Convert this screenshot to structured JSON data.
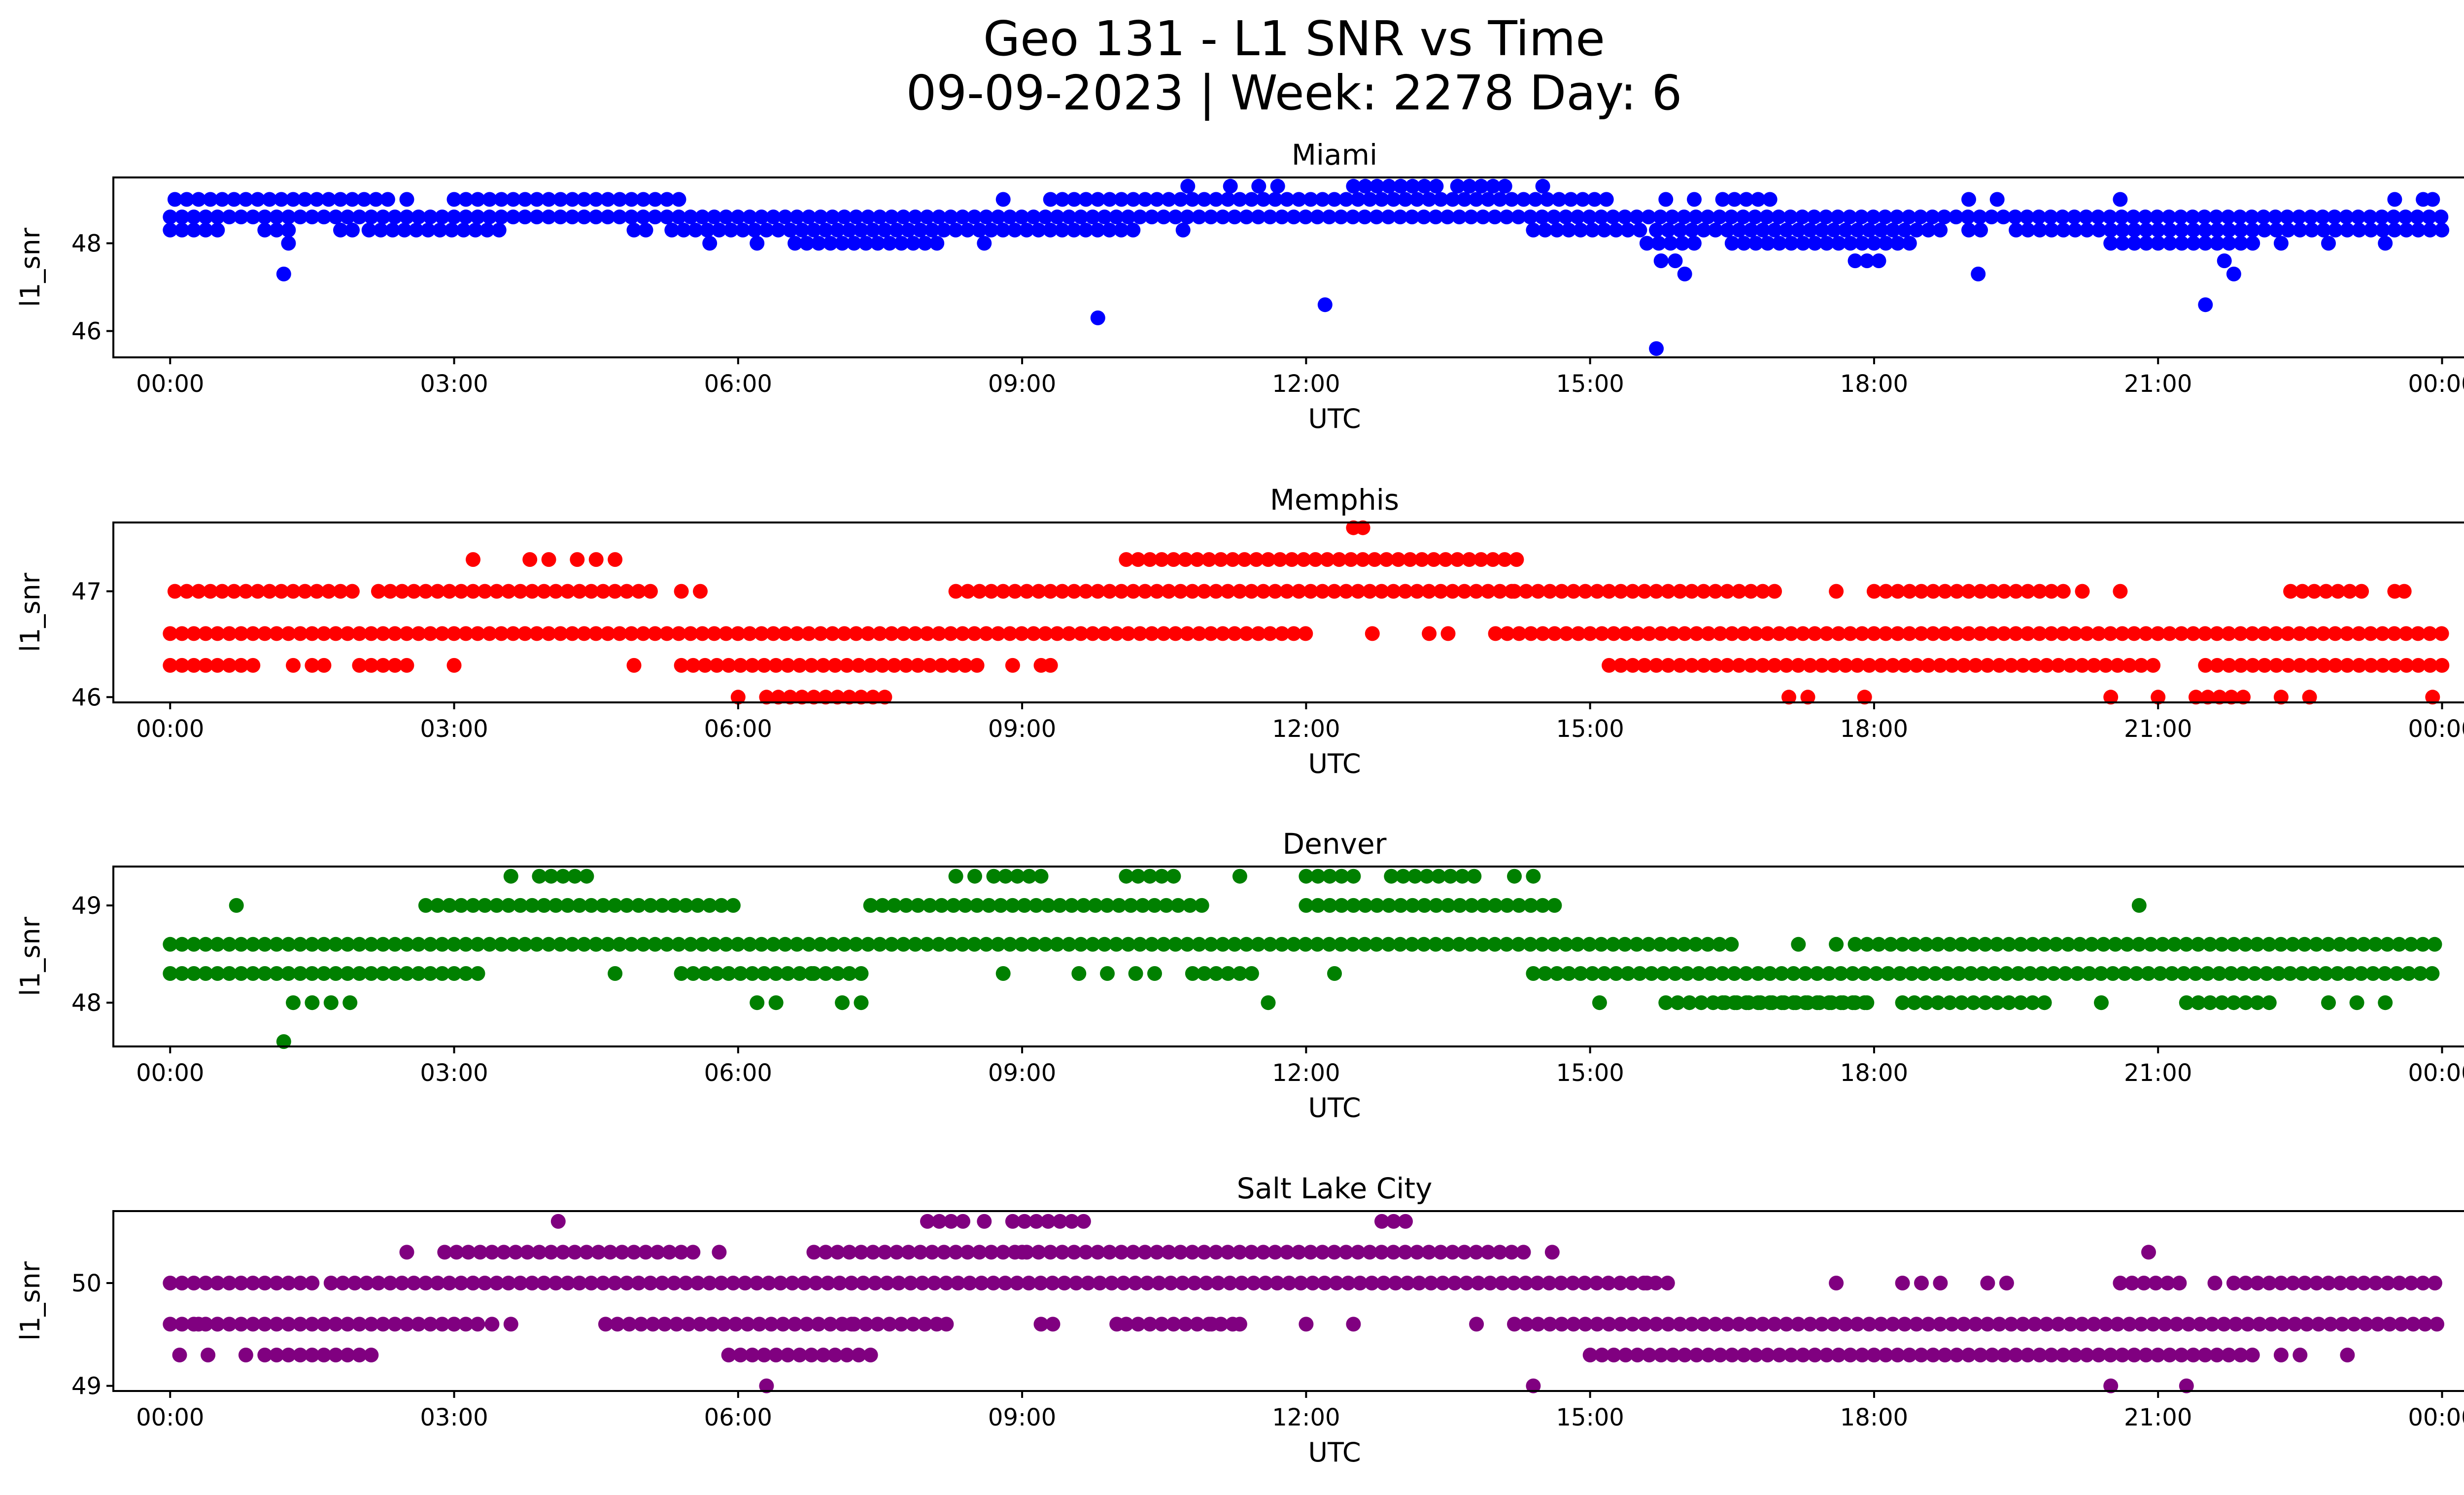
{
  "figure": {
    "title_line1": "Geo 131 - L1 SNR vs Time",
    "title_line2": "09-09-2023 | Week: 2278 Day: 6"
  },
  "chart_data": [
    {
      "type": "scatter",
      "title": "Miami",
      "xlabel": "UTC",
      "ylabel": "l1_snr",
      "color": "#0000ff",
      "xlim_hours": [
        -0.6,
        25.2
      ],
      "ylim": [
        45.4,
        49.5
      ],
      "x_ticks": [
        {
          "h": 0,
          "label": "00:00"
        },
        {
          "h": 3,
          "label": "03:00"
        },
        {
          "h": 6,
          "label": "06:00"
        },
        {
          "h": 9,
          "label": "09:00"
        },
        {
          "h": 12,
          "label": "12:00"
        },
        {
          "h": 15,
          "label": "15:00"
        },
        {
          "h": 18,
          "label": "18:00"
        },
        {
          "h": 21,
          "label": "21:00"
        },
        {
          "h": 24,
          "label": "00:00"
        }
      ],
      "y_ticks": [
        {
          "v": 46,
          "label": "46"
        },
        {
          "v": 48,
          "label": "48"
        }
      ],
      "bands": [
        {
          "y": 48.6,
          "spans": [
            [
              0,
              24
            ]
          ]
        },
        {
          "y": 48.3,
          "spans": [
            [
              0,
              0.5
            ],
            [
              1.0,
              1.3
            ],
            [
              1.8,
              2.0
            ],
            [
              2.1,
              3.5
            ],
            [
              4.9,
              5.1
            ],
            [
              5.3,
              10.2
            ],
            [
              14.4,
              15.6
            ],
            [
              15.7,
              18.7
            ],
            [
              19.0,
              19.2
            ],
            [
              19.5,
              24
            ]
          ]
        },
        {
          "y": 49.0,
          "spans": [
            [
              0.05,
              2.3
            ],
            [
              3.0,
              5.4
            ],
            [
              9.3,
              15.2
            ],
            [
              16.4,
              17.0
            ]
          ]
        },
        {
          "y": 48.0,
          "spans": [
            [
              6.6,
              8.0
            ],
            [
              15.6,
              16.2
            ],
            [
              16.5,
              18.4
            ],
            [
              20.5,
              22.0
            ]
          ]
        },
        {
          "y": 49.3,
          "spans": [
            [
              12.5,
              13.4
            ],
            [
              13.6,
              14.1
            ]
          ]
        },
        {
          "y": 47.6,
          "spans": [
            [
              17.8,
              18.1
            ]
          ]
        }
      ],
      "points": [
        [
          1.2,
          47.3
        ],
        [
          1.25,
          48.0
        ],
        [
          2.5,
          49.0
        ],
        [
          5.7,
          48.0
        ],
        [
          6.2,
          48.0
        ],
        [
          8.1,
          48.0
        ],
        [
          8.6,
          48.0
        ],
        [
          8.8,
          49.0
        ],
        [
          9.8,
          46.3
        ],
        [
          10.7,
          48.3
        ],
        [
          10.75,
          49.3
        ],
        [
          11.2,
          49.3
        ],
        [
          11.5,
          49.3
        ],
        [
          11.7,
          49.3
        ],
        [
          12.2,
          46.6
        ],
        [
          14.5,
          49.3
        ],
        [
          15.7,
          45.6
        ],
        [
          15.75,
          47.6
        ],
        [
          15.8,
          49.0
        ],
        [
          15.9,
          47.6
        ],
        [
          16.0,
          47.3
        ],
        [
          16.1,
          49.0
        ],
        [
          19.0,
          49.0
        ],
        [
          19.1,
          47.3
        ],
        [
          19.3,
          49.0
        ],
        [
          20.6,
          49.0
        ],
        [
          21.5,
          46.6
        ],
        [
          21.7,
          47.6
        ],
        [
          21.8,
          47.3
        ],
        [
          22.3,
          48.0
        ],
        [
          22.8,
          48.0
        ],
        [
          23.4,
          48.0
        ],
        [
          23.5,
          49.0
        ],
        [
          23.8,
          49.0
        ],
        [
          23.9,
          49.0
        ]
      ]
    },
    {
      "type": "scatter",
      "title": "Memphis",
      "xlabel": "UTC",
      "ylabel": "l1_snr",
      "color": "#ff0000",
      "xlim_hours": [
        -0.6,
        25.2
      ],
      "ylim": [
        45.95,
        47.65
      ],
      "x_ticks": [
        {
          "h": 0,
          "label": "00:00"
        },
        {
          "h": 3,
          "label": "03:00"
        },
        {
          "h": 6,
          "label": "06:00"
        },
        {
          "h": 9,
          "label": "09:00"
        },
        {
          "h": 12,
          "label": "12:00"
        },
        {
          "h": 15,
          "label": "15:00"
        },
        {
          "h": 18,
          "label": "18:00"
        },
        {
          "h": 21,
          "label": "21:00"
        },
        {
          "h": 24,
          "label": "00:00"
        }
      ],
      "y_ticks": [
        {
          "v": 46,
          "label": "46"
        },
        {
          "v": 47,
          "label": "47"
        }
      ],
      "bands": [
        {
          "y": 46.6,
          "spans": [
            [
              0,
              12.0
            ],
            [
              14.0,
              24
            ]
          ]
        },
        {
          "y": 46.3,
          "spans": [
            [
              0,
              0.9
            ],
            [
              1.5,
              1.7
            ],
            [
              2.0,
              2.5
            ],
            [
              5.4,
              8.6
            ],
            [
              15.2,
              21.0
            ],
            [
              21.5,
              24
            ]
          ]
        },
        {
          "y": 47.0,
          "spans": [
            [
              0.05,
              2.0
            ],
            [
              2.2,
              5.1
            ],
            [
              8.3,
              14.2
            ],
            [
              14.2,
              17.0
            ],
            [
              18.0,
              20.1
            ],
            [
              22.4,
              23.2
            ]
          ]
        },
        {
          "y": 47.3,
          "spans": [
            [
              10.1,
              14.3
            ]
          ]
        },
        {
          "y": 46.0,
          "spans": [
            [
              6.3,
              7.6
            ],
            [
              21.4,
              21.9
            ]
          ]
        }
      ],
      "points": [
        [
          1.3,
          46.3
        ],
        [
          3.0,
          46.3
        ],
        [
          3.2,
          47.3
        ],
        [
          3.8,
          47.3
        ],
        [
          4.0,
          47.3
        ],
        [
          4.3,
          47.3
        ],
        [
          4.5,
          47.3
        ],
        [
          4.7,
          47.3
        ],
        [
          4.9,
          46.3
        ],
        [
          5.4,
          47.0
        ],
        [
          5.6,
          47.0
        ],
        [
          6.0,
          46.0
        ],
        [
          8.9,
          46.3
        ],
        [
          9.2,
          46.3
        ],
        [
          9.3,
          46.3
        ],
        [
          12.5,
          47.6
        ],
        [
          12.6,
          47.6
        ],
        [
          12.7,
          46.6
        ],
        [
          13.3,
          46.6
        ],
        [
          13.5,
          46.6
        ],
        [
          17.1,
          46.0
        ],
        [
          17.3,
          46.0
        ],
        [
          17.6,
          47.0
        ],
        [
          17.9,
          46.0
        ],
        [
          20.2,
          47.0
        ],
        [
          20.5,
          46.0
        ],
        [
          20.6,
          47.0
        ],
        [
          21.0,
          46.0
        ],
        [
          22.3,
          46.0
        ],
        [
          22.6,
          46.0
        ],
        [
          23.5,
          47.0
        ],
        [
          23.6,
          47.0
        ],
        [
          23.9,
          46.0
        ]
      ]
    },
    {
      "type": "scatter",
      "title": "Denver",
      "xlabel": "UTC",
      "ylabel": "l1_snr",
      "color": "#008000",
      "xlim_hours": [
        -0.6,
        25.2
      ],
      "ylim": [
        47.55,
        49.4
      ],
      "x_ticks": [
        {
          "h": 0,
          "label": "00:00"
        },
        {
          "h": 3,
          "label": "03:00"
        },
        {
          "h": 6,
          "label": "06:00"
        },
        {
          "h": 9,
          "label": "09:00"
        },
        {
          "h": 12,
          "label": "12:00"
        },
        {
          "h": 15,
          "label": "15:00"
        },
        {
          "h": 18,
          "label": "18:00"
        },
        {
          "h": 21,
          "label": "21:00"
        },
        {
          "h": 24,
          "label": "00:00"
        }
      ],
      "y_ticks": [
        {
          "v": 48,
          "label": "48"
        },
        {
          "v": 49,
          "label": "49"
        }
      ],
      "bands": [
        {
          "y": 48.6,
          "spans": [
            [
              0,
              16.5
            ],
            [
              17.8,
              24
            ]
          ]
        },
        {
          "y": 48.3,
          "spans": [
            [
              0,
              2.9
            ],
            [
              3.0,
              3.3
            ],
            [
              5.4,
              6.8
            ],
            [
              6.8,
              7.3
            ],
            [
              10.8,
              11.5
            ],
            [
              14.4,
              24
            ]
          ]
        },
        {
          "y": 49.0,
          "spans": [
            [
              2.7,
              6.0
            ],
            [
              7.4,
              11.0
            ],
            [
              12.0,
              14.7
            ]
          ]
        },
        {
          "y": 48.0,
          "spans": [
            [
              15.8,
              18.0
            ],
            [
              16.4,
              17.9
            ],
            [
              18.3,
              19.8
            ],
            [
              21.3,
              22.2
            ]
          ]
        },
        {
          "y": 49.3,
          "spans": [
            [
              3.9,
              4.4
            ],
            [
              8.7,
              9.3
            ],
            [
              10.1,
              10.6
            ],
            [
              12.0,
              12.5
            ],
            [
              12.9,
              13.8
            ]
          ]
        }
      ],
      "points": [
        [
          0.7,
          49.0
        ],
        [
          1.2,
          47.6
        ],
        [
          1.3,
          48.0
        ],
        [
          1.5,
          48.0
        ],
        [
          1.7,
          48.0
        ],
        [
          1.9,
          48.0
        ],
        [
          3.6,
          49.3
        ],
        [
          4.5,
          48.6
        ],
        [
          4.7,
          48.3
        ],
        [
          6.2,
          48.0
        ],
        [
          6.4,
          48.0
        ],
        [
          7.1,
          48.0
        ],
        [
          7.3,
          48.0
        ],
        [
          8.3,
          49.3
        ],
        [
          8.5,
          49.3
        ],
        [
          8.8,
          48.3
        ],
        [
          9.6,
          48.3
        ],
        [
          9.9,
          48.3
        ],
        [
          10.2,
          48.3
        ],
        [
          10.4,
          48.3
        ],
        [
          11.3,
          49.3
        ],
        [
          11.6,
          48.0
        ],
        [
          12.3,
          48.3
        ],
        [
          14.2,
          49.3
        ],
        [
          14.4,
          49.3
        ],
        [
          15.1,
          48.0
        ],
        [
          17.2,
          48.6
        ],
        [
          17.6,
          48.6
        ],
        [
          20.4,
          48.0
        ],
        [
          20.8,
          49.0
        ],
        [
          22.8,
          48.0
        ],
        [
          23.1,
          48.0
        ],
        [
          23.4,
          48.0
        ]
      ]
    },
    {
      "type": "scatter",
      "title": "Salt Lake City",
      "xlabel": "UTC",
      "ylabel": "l1_snr",
      "color": "#800080",
      "xlim_hours": [
        -0.6,
        25.2
      ],
      "ylim": [
        48.95,
        50.7
      ],
      "x_ticks": [
        {
          "h": 0,
          "label": "00:00"
        },
        {
          "h": 3,
          "label": "03:00"
        },
        {
          "h": 6,
          "label": "06:00"
        },
        {
          "h": 9,
          "label": "09:00"
        },
        {
          "h": 12,
          "label": "12:00"
        },
        {
          "h": 15,
          "label": "15:00"
        },
        {
          "h": 18,
          "label": "18:00"
        },
        {
          "h": 21,
          "label": "21:00"
        },
        {
          "h": 24,
          "label": "00:00"
        }
      ],
      "y_ticks": [
        {
          "v": 49,
          "label": "49"
        },
        {
          "v": 50,
          "label": "50"
        }
      ],
      "bands": [
        {
          "y": 50.0,
          "spans": [
            [
              0,
              1.6
            ],
            [
              1.7,
              15.9
            ],
            [
              20.6,
              21.3
            ],
            [
              21.8,
              24
            ]
          ]
        },
        {
          "y": 49.6,
          "spans": [
            [
              0,
              3.3
            ],
            [
              4.6,
              8.2
            ],
            [
              9.2,
              9.4
            ],
            [
              10.1,
              11.3
            ],
            [
              14.2,
              24
            ]
          ]
        },
        {
          "y": 50.3,
          "spans": [
            [
              2.9,
              5.6
            ],
            [
              6.8,
              14.4
            ]
          ]
        },
        {
          "y": 49.3,
          "spans": [
            [
              1.0,
              2.2
            ],
            [
              5.9,
              7.4
            ],
            [
              15.0,
              22.0
            ]
          ]
        },
        {
          "y": 50.6,
          "spans": [
            [
              8.0,
              8.4
            ],
            [
              8.9,
              9.7
            ],
            [
              12.8,
              13.1
            ]
          ]
        }
      ],
      "points": [
        [
          0.1,
          49.3
        ],
        [
          0.3,
          49.6
        ],
        [
          0.4,
          49.3
        ],
        [
          0.5,
          49.6
        ],
        [
          0.8,
          49.3
        ],
        [
          2.5,
          50.3
        ],
        [
          3.0,
          49.6
        ],
        [
          3.2,
          50.0
        ],
        [
          3.4,
          49.6
        ],
        [
          3.6,
          49.6
        ],
        [
          4.1,
          50.6
        ],
        [
          5.8,
          50.3
        ],
        [
          6.3,
          49.0
        ],
        [
          7.2,
          49.6
        ],
        [
          8.2,
          49.6
        ],
        [
          8.6,
          50.6
        ],
        [
          9.0,
          50.3
        ],
        [
          10.0,
          49.6
        ],
        [
          11.0,
          49.6
        ],
        [
          11.3,
          49.6
        ],
        [
          12.0,
          49.6
        ],
        [
          12.5,
          49.6
        ],
        [
          13.8,
          49.6
        ],
        [
          14.4,
          49.0
        ],
        [
          14.6,
          50.3
        ],
        [
          15.6,
          50.0
        ],
        [
          17.6,
          50.0
        ],
        [
          18.3,
          50.0
        ],
        [
          18.5,
          50.0
        ],
        [
          18.7,
          50.0
        ],
        [
          19.2,
          50.0
        ],
        [
          19.4,
          50.0
        ],
        [
          20.5,
          49.0
        ],
        [
          20.9,
          50.3
        ],
        [
          21.3,
          49.0
        ],
        [
          21.6,
          50.0
        ],
        [
          22.3,
          49.3
        ],
        [
          22.5,
          49.3
        ],
        [
          23.0,
          49.3
        ]
      ]
    }
  ]
}
